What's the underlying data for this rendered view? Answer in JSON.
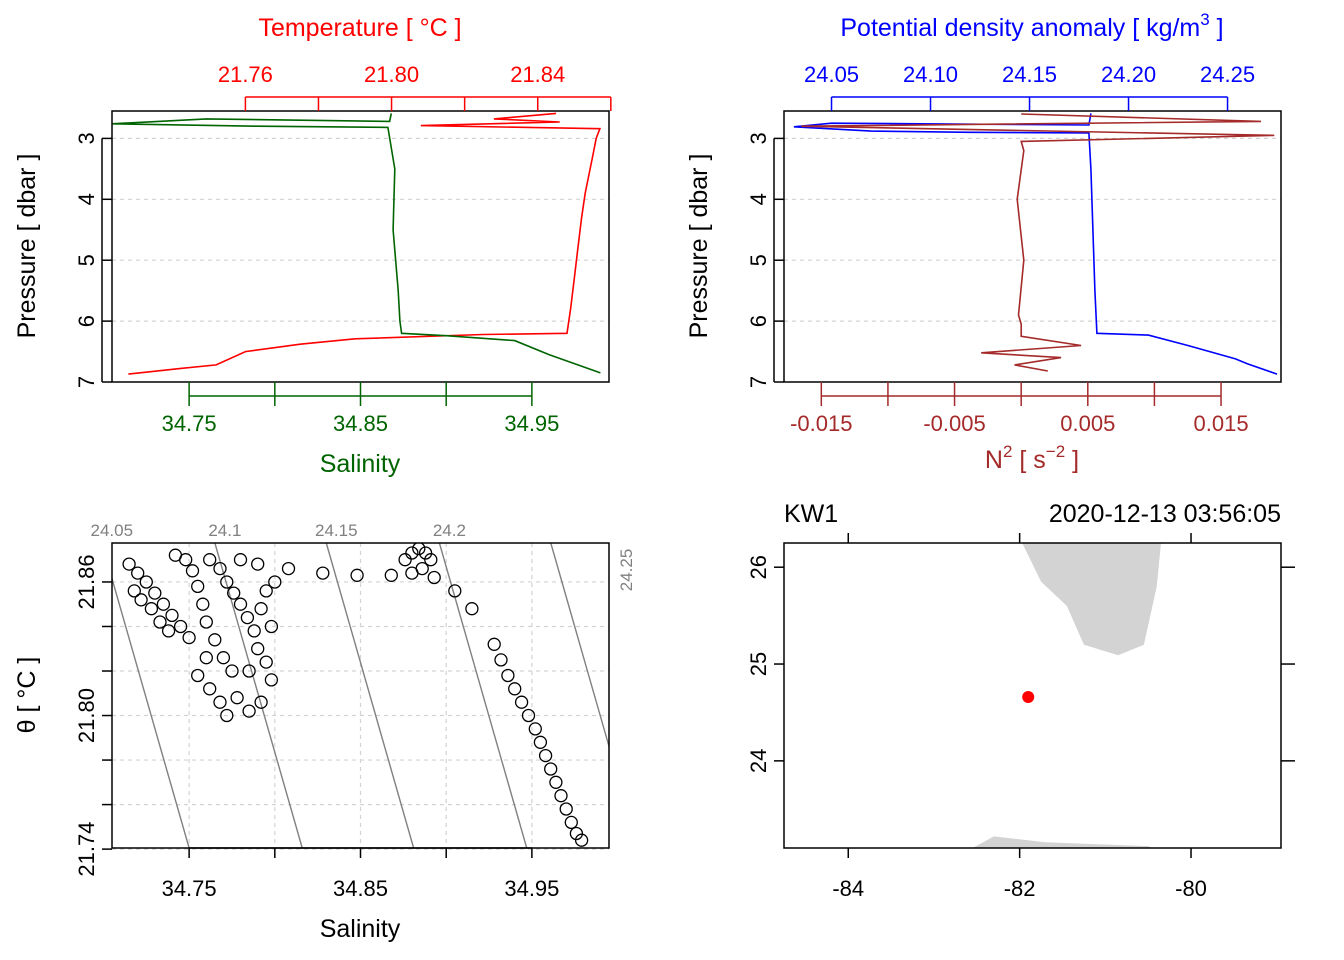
{
  "colors": {
    "temperature": "#ff0000",
    "salinity": "#006400",
    "density": "#0000ff",
    "n2": "#a52a2a",
    "grid": "#d3d3d3",
    "land": "#d3d3d3",
    "station": "#ff0000",
    "isopycnal": "#808080"
  },
  "chart_data": [
    {
      "type": "line",
      "panel": "profile-ts",
      "top_axis_label": "Temperature [ °C ]",
      "top_axis_ticks": [
        "21.76",
        "21.80",
        "21.84"
      ],
      "xlabel": "Salinity",
      "x_ticks": [
        "34.75",
        "34.85",
        "34.95"
      ],
      "ylabel": "Pressure [ dbar ]",
      "y_ticks": [
        "3",
        "4",
        "5",
        "6",
        "7"
      ],
      "y_reversed": true,
      "grid": true,
      "salinity_xlim": [
        34.705,
        34.995
      ],
      "temperature_xlim": [
        21.7235,
        21.8595
      ],
      "ylim": [
        7.0,
        2.55
      ],
      "series": [
        {
          "color": "red",
          "x_units": "temperature",
          "points": [
            [
              21.845,
              2.59
            ],
            [
              21.828,
              2.68
            ],
            [
              21.846,
              2.73
            ],
            [
              21.808,
              2.79
            ],
            [
              21.857,
              2.84
            ],
            [
              21.856,
              3.0
            ],
            [
              21.855,
              3.3
            ],
            [
              21.854,
              3.6
            ],
            [
              21.853,
              3.9
            ],
            [
              21.852,
              4.3
            ],
            [
              21.851,
              4.8
            ],
            [
              21.85,
              5.3
            ],
            [
              21.849,
              5.8
            ],
            [
              21.848,
              6.2
            ],
            [
              21.825,
              6.22
            ],
            [
              21.79,
              6.29
            ],
            [
              21.775,
              6.38
            ],
            [
              21.76,
              6.5
            ],
            [
              21.752,
              6.72
            ],
            [
              21.742,
              6.78
            ],
            [
              21.728,
              6.87
            ]
          ]
        },
        {
          "color": "green",
          "x_units": "salinity",
          "points": [
            [
              34.868,
              2.59
            ],
            [
              34.867,
              2.72
            ],
            [
              34.76,
              2.68
            ],
            [
              34.705,
              2.76
            ],
            [
              34.79,
              2.8
            ],
            [
              34.866,
              2.82
            ],
            [
              34.87,
              3.5
            ],
            [
              34.869,
              4.5
            ],
            [
              34.872,
              5.5
            ],
            [
              34.873,
              6.0
            ],
            [
              34.874,
              6.2
            ],
            [
              34.9,
              6.24
            ],
            [
              34.94,
              6.32
            ],
            [
              34.96,
              6.55
            ],
            [
              34.975,
              6.7
            ],
            [
              34.99,
              6.85
            ]
          ]
        }
      ]
    },
    {
      "type": "line",
      "panel": "profile-density",
      "top_axis_label": "Potential density anomaly [ kg/m",
      "top_axis_label_sup": "3",
      "top_axis_label_end": " ]",
      "top_axis_ticks": [
        "24.05",
        "24.10",
        "24.15",
        "24.20",
        "24.25"
      ],
      "xlabel": "N",
      "xlabel_sup": "2",
      "xlabel_mid": " [ s",
      "xlabel_sup2": "−2",
      "xlabel_end": " ]",
      "x_ticks": [
        "-0.015",
        "-0.005",
        "0.005",
        "0.015"
      ],
      "ylabel": "Pressure [ dbar ]",
      "y_ticks": [
        "3",
        "4",
        "5",
        "6",
        "7"
      ],
      "y_reversed": true,
      "grid": true,
      "density_xlim": [
        24.026,
        24.277
      ],
      "n2_xlim": [
        -0.0178,
        0.0195
      ],
      "ylim": [
        7.0,
        2.55
      ],
      "series": [
        {
          "color": "blue",
          "x_units": "density",
          "points": [
            [
              24.181,
              2.59
            ],
            [
              24.18,
              2.78
            ],
            [
              24.05,
              2.75
            ],
            [
              24.031,
              2.81
            ],
            [
              24.07,
              2.88
            ],
            [
              24.12,
              2.9
            ],
            [
              24.18,
              2.91
            ],
            [
              24.181,
              3.5
            ],
            [
              24.182,
              4.5
            ],
            [
              24.183,
              5.5
            ],
            [
              24.184,
              6.2
            ],
            [
              24.21,
              6.23
            ],
            [
              24.23,
              6.4
            ],
            [
              24.254,
              6.62
            ],
            [
              24.26,
              6.7
            ],
            [
              24.275,
              6.87
            ]
          ]
        },
        {
          "color": "brown",
          "x_units": "n2",
          "points": [
            [
              0.0,
              2.6
            ],
            [
              0.018,
              2.72
            ],
            [
              -0.0165,
              2.8
            ],
            [
              0.019,
              2.95
            ],
            [
              0.0,
              3.05
            ],
            [
              0.0002,
              3.2
            ],
            [
              -0.0003,
              4.0
            ],
            [
              0.0002,
              5.0
            ],
            [
              -0.0002,
              5.9
            ],
            [
              0.0,
              6.05
            ],
            [
              0.0,
              6.25
            ],
            [
              0.0045,
              6.4
            ],
            [
              -0.003,
              6.52
            ],
            [
              0.003,
              6.6
            ],
            [
              -0.0005,
              6.72
            ],
            [
              0.002,
              6.82
            ]
          ]
        }
      ]
    },
    {
      "type": "scatter",
      "panel": "ts-diagram",
      "xlabel": "Salinity",
      "x_ticks": [
        "34.75",
        "34.85",
        "34.95"
      ],
      "ylabel": "θ [ °C ]",
      "y_ticks": [
        "21.74",
        "21.80",
        "21.86"
      ],
      "xlim": [
        34.705,
        34.995
      ],
      "ylim": [
        21.7405,
        21.8775
      ],
      "grid": true,
      "isopycnal_labels": [
        "24.05",
        "24.1",
        "24.15",
        "24.2",
        "24.25"
      ],
      "isopycnal_salinity_at_bottom": [
        34.75,
        34.816,
        34.881,
        34.947,
        35.012
      ],
      "isopycnal_slope_psu_per_degc": 0.372,
      "series": [
        {
          "marker": "open-circle",
          "points": [
            [
              34.715,
              21.868
            ],
            [
              34.72,
              21.864
            ],
            [
              34.725,
              21.86
            ],
            [
              34.73,
              21.855
            ],
            [
              34.735,
              21.85
            ],
            [
              34.74,
              21.845
            ],
            [
              34.745,
              21.84
            ],
            [
              34.75,
              21.835
            ],
            [
              34.718,
              21.856
            ],
            [
              34.722,
              21.852
            ],
            [
              34.728,
              21.848
            ],
            [
              34.733,
              21.842
            ],
            [
              34.738,
              21.838
            ],
            [
              34.742,
              21.872
            ],
            [
              34.748,
              21.87
            ],
            [
              34.752,
              21.865
            ],
            [
              34.755,
              21.858
            ],
            [
              34.758,
              21.85
            ],
            [
              34.76,
              21.842
            ],
            [
              34.762,
              21.87
            ],
            [
              34.768,
              21.866
            ],
            [
              34.772,
              21.86
            ],
            [
              34.776,
              21.855
            ],
            [
              34.78,
              21.85
            ],
            [
              34.784,
              21.844
            ],
            [
              34.788,
              21.838
            ],
            [
              34.792,
              21.848
            ],
            [
              34.795,
              21.856
            ],
            [
              34.79,
              21.868
            ],
            [
              34.78,
              21.87
            ],
            [
              34.765,
              21.834
            ],
            [
              34.77,
              21.826
            ],
            [
              34.775,
              21.82
            ],
            [
              34.76,
              21.826
            ],
            [
              34.755,
              21.818
            ],
            [
              34.762,
              21.812
            ],
            [
              34.768,
              21.806
            ],
            [
              34.772,
              21.8
            ],
            [
              34.778,
              21.808
            ],
            [
              34.785,
              21.82
            ],
            [
              34.79,
              21.83
            ],
            [
              34.795,
              21.824
            ],
            [
              34.798,
              21.816
            ],
            [
              34.792,
              21.806
            ],
            [
              34.785,
              21.802
            ],
            [
              34.8,
              21.86
            ],
            [
              34.798,
              21.84
            ],
            [
              34.808,
              21.866
            ],
            [
              34.828,
              21.864
            ],
            [
              34.848,
              21.863
            ],
            [
              34.868,
              21.863
            ],
            [
              34.876,
              21.87
            ],
            [
              34.88,
              21.873
            ],
            [
              34.884,
              21.875
            ],
            [
              34.888,
              21.873
            ],
            [
              34.891,
              21.87
            ],
            [
              34.886,
              21.866
            ],
            [
              34.88,
              21.864
            ],
            [
              34.893,
              21.862
            ],
            [
              34.905,
              21.856
            ],
            [
              34.915,
              21.848
            ],
            [
              34.928,
              21.832
            ],
            [
              34.932,
              21.825
            ],
            [
              34.936,
              21.818
            ],
            [
              34.94,
              21.812
            ],
            [
              34.944,
              21.806
            ],
            [
              34.948,
              21.8
            ],
            [
              34.952,
              21.794
            ],
            [
              34.955,
              21.788
            ],
            [
              34.958,
              21.782
            ],
            [
              34.961,
              21.776
            ],
            [
              34.964,
              21.77
            ],
            [
              34.967,
              21.764
            ],
            [
              34.97,
              21.758
            ],
            [
              34.973,
              21.752
            ],
            [
              34.976,
              21.747
            ],
            [
              34.979,
              21.744
            ]
          ]
        }
      ]
    },
    {
      "type": "scatter",
      "panel": "station-map",
      "station_name": "KW1",
      "timestamp": "2020-12-13 03:56:05",
      "x_ticks": [
        "-84",
        "-82",
        "-80"
      ],
      "y_ticks": [
        "24",
        "25",
        "26"
      ],
      "xlim": [
        -84.75,
        -78.95
      ],
      "ylim": [
        23.1,
        26.25
      ],
      "station": {
        "lon": -81.9,
        "lat": 24.66
      },
      "land": [
        [
          [
            -81.97,
            26.25
          ],
          [
            -81.75,
            25.85
          ],
          [
            -81.45,
            25.6
          ],
          [
            -81.25,
            25.2
          ],
          [
            -80.85,
            25.09
          ],
          [
            -80.55,
            25.2
          ],
          [
            -80.4,
            25.8
          ],
          [
            -80.35,
            26.25
          ]
        ],
        [
          [
            -82.55,
            23.1
          ],
          [
            -82.3,
            23.22
          ],
          [
            -81.7,
            23.16
          ],
          [
            -80.5,
            23.12
          ],
          [
            -80.45,
            23.1
          ]
        ]
      ],
      "grid": false
    }
  ]
}
